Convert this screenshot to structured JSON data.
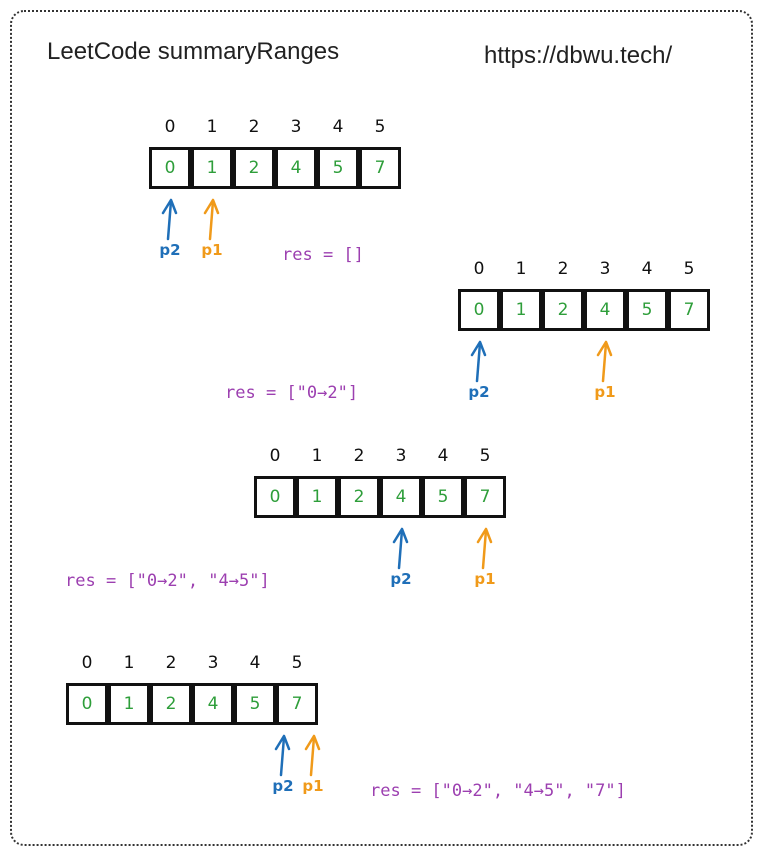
{
  "title": "LeetCode summaryRanges",
  "url": "https://dbwu.tech/",
  "colors": {
    "value": "#2e9e3a",
    "p1": "#f09a1a",
    "p2": "#1f6fb8",
    "res": "#9c3fb0",
    "border": "#111111"
  },
  "indices": [
    "0",
    "1",
    "2",
    "3",
    "4",
    "5"
  ],
  "values": [
    "0",
    "1",
    "2",
    "4",
    "5",
    "7"
  ],
  "pointer_labels": {
    "p1": "p1",
    "p2": "p2"
  },
  "steps": [
    {
      "res": "res = []",
      "p2_index": 0,
      "p1_index": 1
    },
    {
      "res": "res = [\"0→2\"]",
      "p2_index": 0,
      "p1_index": 3
    },
    {
      "res": "res = [\"0→2\", \"4→5\"]",
      "p2_index": 3,
      "p1_index": 5
    },
    {
      "res": "res = [\"0→2\", \"4→5\", \"7\"]",
      "p2_index": 5,
      "p1_index": 5
    }
  ]
}
